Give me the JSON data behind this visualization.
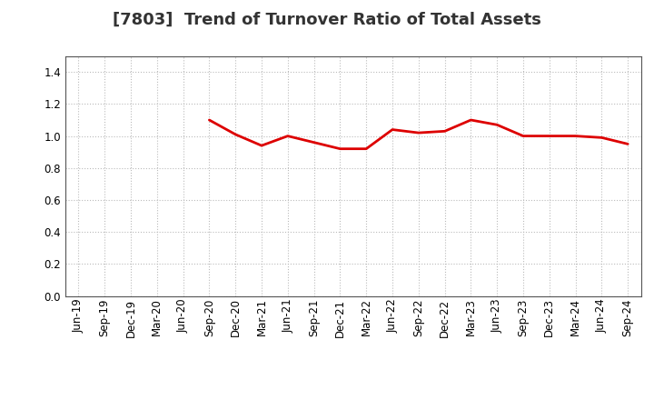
{
  "title": "[7803]  Trend of Turnover Ratio of Total Assets",
  "x_labels": [
    "Jun-19",
    "Sep-19",
    "Dec-19",
    "Mar-20",
    "Jun-20",
    "Sep-20",
    "Dec-20",
    "Mar-21",
    "Jun-21",
    "Sep-21",
    "Dec-21",
    "Mar-22",
    "Jun-22",
    "Sep-22",
    "Dec-22",
    "Mar-23",
    "Jun-23",
    "Sep-23",
    "Dec-23",
    "Mar-24",
    "Jun-24",
    "Sep-24"
  ],
  "values": [
    null,
    null,
    null,
    null,
    null,
    1.1,
    1.01,
    0.94,
    1.0,
    0.96,
    0.92,
    0.92,
    1.04,
    1.02,
    1.03,
    1.1,
    1.07,
    1.0,
    1.0,
    1.0,
    0.99,
    0.95
  ],
  "ylim": [
    0.0,
    1.5
  ],
  "yticks": [
    0.0,
    0.2,
    0.4,
    0.6,
    0.8,
    1.0,
    1.2,
    1.4
  ],
  "line_color": "#dd0000",
  "line_width": 2.0,
  "bg_color": "#ffffff",
  "grid_color": "#bbbbbb",
  "title_fontsize": 13,
  "tick_fontsize": 8.5
}
